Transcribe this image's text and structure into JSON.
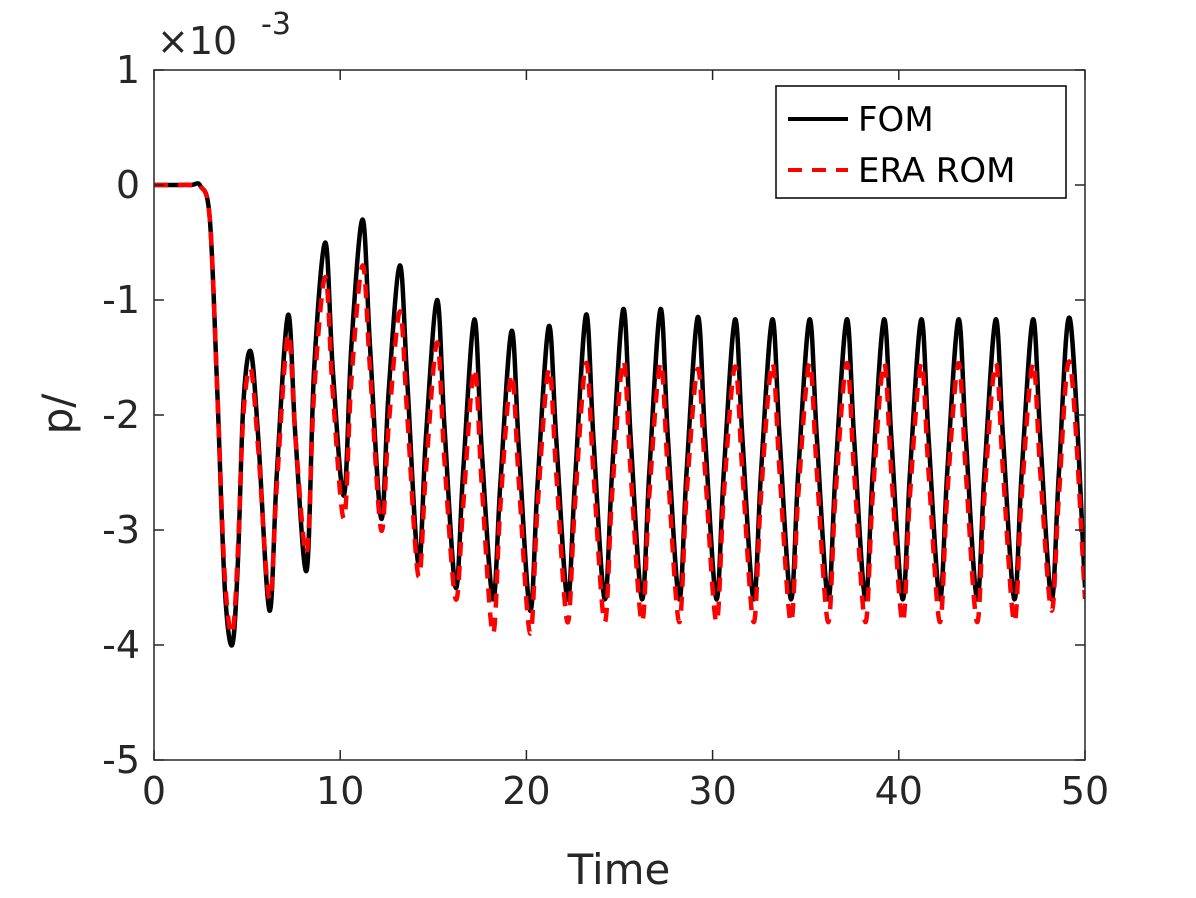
{
  "chart_data": {
    "type": "line",
    "title": "",
    "xlabel": "Time",
    "ylabel": "p/",
    "xlim": [
      0,
      50
    ],
    "ylim": [
      -0.005,
      0.001
    ],
    "x_ticks": [
      0,
      10,
      20,
      30,
      40,
      50
    ],
    "x_tick_labels": [
      "0",
      "10",
      "20",
      "30",
      "40",
      "50"
    ],
    "y_ticks": [
      -0.005,
      -0.004,
      -0.003,
      -0.002,
      -0.001,
      0,
      0.001
    ],
    "y_tick_labels": [
      "-5",
      "-4",
      "-3",
      "-2",
      "-1",
      "0",
      "1"
    ],
    "y_exponent": {
      "base": "×10",
      "power": "-3"
    },
    "grid": false,
    "legend_position": "top-right",
    "series": [
      {
        "name": "FOM",
        "color": "#000000",
        "style": "solid",
        "x": [
          0,
          1,
          2,
          2.5,
          3,
          3.4,
          3.8,
          4.2,
          4.5,
          4.8,
          5.2,
          5.6,
          6.2,
          6.6,
          7.2,
          7.6,
          8.2,
          8.6,
          9.2,
          9.6,
          10.2,
          10.6,
          11.2,
          11.6,
          12.2,
          12.6,
          13.2,
          13.6,
          14.2,
          14.6,
          15.2,
          15.6,
          16.2,
          16.6,
          17.2,
          17.6,
          18.2,
          18.6,
          19.2,
          19.6,
          20.2,
          20.6,
          21.2,
          21.6,
          22.2,
          22.6,
          23.2,
          23.6,
          24.2,
          24.6,
          25.2,
          25.6,
          26.2,
          26.6,
          27.2,
          27.6,
          28.2,
          28.6,
          29.2,
          29.6,
          30.2,
          30.6,
          31.2,
          31.6,
          32.2,
          32.6,
          33.2,
          33.6,
          34.2,
          34.6,
          35.2,
          35.6,
          36.2,
          36.6,
          37.2,
          37.6,
          38.2,
          38.6,
          39.2,
          39.6,
          40.2,
          40.6,
          41.2,
          41.6,
          42.2,
          42.6,
          43.2,
          43.6,
          44.2,
          44.6,
          45.2,
          45.6,
          46.2,
          46.6,
          47.2,
          47.6,
          48.2,
          48.6,
          49.2,
          50
        ],
        "y": [
          0,
          0,
          0,
          -1e-05,
          -0.0003,
          -0.0018,
          -0.0035,
          -0.004,
          -0.0033,
          -0.0019,
          -0.00145,
          -0.0022,
          -0.0037,
          -0.0025,
          -0.00113,
          -0.0022,
          -0.00335,
          -0.0016,
          -0.0005,
          -0.0016,
          -0.0027,
          -0.0014,
          -0.0003,
          -0.0014,
          -0.0029,
          -0.0018,
          -0.0007,
          -0.0017,
          -0.0033,
          -0.0022,
          -0.001,
          -0.0021,
          -0.0035,
          -0.0025,
          -0.00117,
          -0.0023,
          -0.0036,
          -0.0026,
          -0.00127,
          -0.0023,
          -0.0037,
          -0.0026,
          -0.00123,
          -0.0022,
          -0.0036,
          -0.0026,
          -0.00113,
          -0.0022,
          -0.0036,
          -0.0025,
          -0.00108,
          -0.0022,
          -0.0036,
          -0.0025,
          -0.00108,
          -0.0022,
          -0.0036,
          -0.0025,
          -0.00115,
          -0.0022,
          -0.0036,
          -0.0025,
          -0.00117,
          -0.0022,
          -0.0036,
          -0.0025,
          -0.00117,
          -0.0022,
          -0.0036,
          -0.0025,
          -0.00117,
          -0.0022,
          -0.0036,
          -0.0025,
          -0.00117,
          -0.0022,
          -0.0036,
          -0.0025,
          -0.00117,
          -0.0022,
          -0.0036,
          -0.0025,
          -0.00117,
          -0.0022,
          -0.0036,
          -0.0025,
          -0.00117,
          -0.0022,
          -0.0036,
          -0.0025,
          -0.00117,
          -0.0022,
          -0.0036,
          -0.0025,
          -0.00117,
          -0.0022,
          -0.0036,
          -0.0025,
          -0.00117,
          -0.0035
        ]
      },
      {
        "name": "ERA ROM",
        "color": "#ff0000",
        "style": "dashed",
        "x": [
          0,
          1,
          2,
          2.5,
          3,
          3.4,
          3.8,
          4.2,
          4.5,
          4.8,
          5.2,
          5.6,
          6.2,
          6.6,
          7.2,
          7.6,
          8.2,
          8.6,
          9.2,
          9.6,
          10.2,
          10.6,
          11.2,
          11.6,
          12.2,
          12.6,
          13.2,
          13.6,
          14.2,
          14.6,
          15.2,
          15.6,
          16.2,
          16.6,
          17.2,
          17.6,
          18.2,
          18.6,
          19.2,
          19.6,
          20.2,
          20.6,
          21.2,
          21.6,
          22.2,
          22.6,
          23.2,
          23.6,
          24.2,
          24.6,
          25.2,
          25.6,
          26.2,
          26.6,
          27.2,
          27.6,
          28.2,
          28.6,
          29.2,
          29.6,
          30.2,
          30.6,
          31.2,
          31.6,
          32.2,
          32.6,
          33.2,
          33.6,
          34.2,
          34.6,
          35.2,
          35.6,
          36.2,
          36.6,
          37.2,
          37.6,
          38.2,
          38.6,
          39.2,
          39.6,
          40.2,
          40.6,
          41.2,
          41.6,
          42.2,
          42.6,
          43.2,
          43.6,
          44.2,
          44.6,
          45.2,
          45.6,
          46.2,
          46.6,
          47.2,
          47.6,
          48.2,
          48.6,
          49.2,
          50
        ],
        "y": [
          0,
          0,
          0,
          -1e-05,
          -0.0003,
          -0.0018,
          -0.0034,
          -0.0039,
          -0.0032,
          -0.002,
          -0.0016,
          -0.0023,
          -0.0036,
          -0.0026,
          -0.0013,
          -0.0022,
          -0.0032,
          -0.0018,
          -0.0008,
          -0.0018,
          -0.0029,
          -0.0017,
          -0.0007,
          -0.0016,
          -0.003,
          -0.0021,
          -0.0011,
          -0.002,
          -0.0034,
          -0.0025,
          -0.00137,
          -0.0024,
          -0.0036,
          -0.0028,
          -0.0016,
          -0.0026,
          -0.0039,
          -0.0028,
          -0.00165,
          -0.0026,
          -0.0039,
          -0.0028,
          -0.0016,
          -0.0025,
          -0.0038,
          -0.0028,
          -0.00155,
          -0.0025,
          -0.0038,
          -0.0027,
          -0.00153,
          -0.0025,
          -0.0038,
          -0.0027,
          -0.00155,
          -0.0025,
          -0.0038,
          -0.0027,
          -0.0016,
          -0.0025,
          -0.0038,
          -0.0027,
          -0.00158,
          -0.0025,
          -0.0038,
          -0.0027,
          -0.00155,
          -0.0025,
          -0.0038,
          -0.0027,
          -0.00155,
          -0.0025,
          -0.0038,
          -0.0027,
          -0.00155,
          -0.0025,
          -0.0038,
          -0.0027,
          -0.00155,
          -0.0025,
          -0.0038,
          -0.0027,
          -0.00155,
          -0.0025,
          -0.0038,
          -0.0027,
          -0.00155,
          -0.0025,
          -0.0038,
          -0.0027,
          -0.00155,
          -0.0025,
          -0.0038,
          -0.0027,
          -0.00155,
          -0.0025,
          -0.0037,
          -0.0027,
          -0.00155,
          -0.0036
        ]
      }
    ]
  }
}
